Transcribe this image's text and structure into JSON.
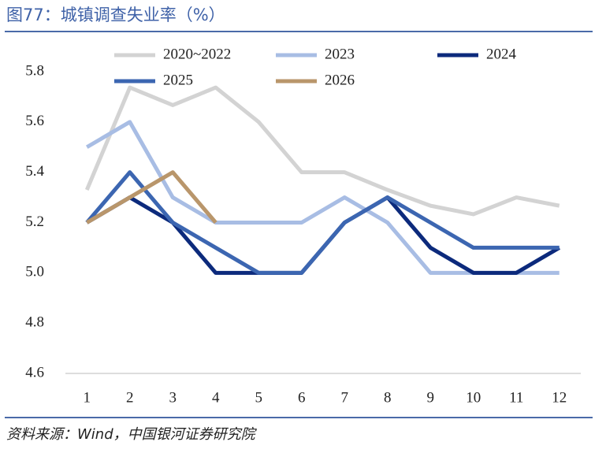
{
  "chart_data": {
    "type": "line",
    "title": "图77：城镇调查失业率（%）",
    "source": "资料来源：Wind，中国银河证券研究院",
    "categories": [
      1,
      2,
      3,
      4,
      5,
      6,
      7,
      8,
      9,
      10,
      11,
      12
    ],
    "ylim": [
      4.6,
      5.8
    ],
    "yticks": [
      4.6,
      4.8,
      {
        "value": 5,
        "label": "5.0"
      },
      5.2,
      5.4,
      5.6,
      5.8
    ],
    "legend": "top",
    "series": [
      {
        "name": "2020~2022",
        "color": "#d3d3d3",
        "values": [
          5.33,
          5.737,
          5.667,
          5.737,
          5.6,
          5.4,
          5.4,
          5.33,
          5.267,
          5.233,
          5.3,
          5.267
        ]
      },
      {
        "name": "2023",
        "color": "#a8bde4",
        "values": [
          5.5,
          5.6,
          5.3,
          5.2,
          5.2,
          5.2,
          5.3,
          5.2,
          5.0,
          5.0,
          5.0,
          5.0
        ]
      },
      {
        "name": "2024",
        "color": "#0c2a7c",
        "values": [
          5.2,
          5.3,
          5.2,
          5.0,
          5.0,
          5.0,
          5.2,
          5.3,
          5.1,
          5.0,
          5.0,
          5.1
        ]
      },
      {
        "name": "2025",
        "color": "#3c66b1",
        "values": [
          5.2,
          5.4,
          5.2,
          5.1,
          5.0,
          5.0,
          5.2,
          5.3,
          5.2,
          5.1,
          5.1,
          5.1
        ]
      },
      {
        "name": "2026",
        "color": "#b9966b",
        "values": [
          5.2,
          5.3,
          5.4,
          5.2,
          null,
          null,
          null,
          null,
          null,
          null,
          null,
          null
        ]
      }
    ]
  }
}
